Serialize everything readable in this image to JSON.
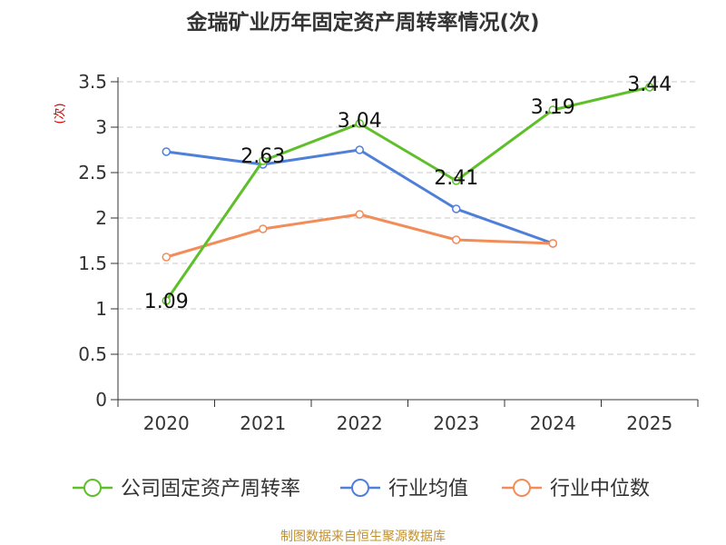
{
  "chart_data": {
    "type": "line",
    "title": "金瑞矿业历年固定资产周转率情况(次)",
    "ylabel": "(次)",
    "xlabel": "",
    "ylim": [
      0,
      3.5
    ],
    "yticks": [
      "0",
      "0.5",
      "1",
      "1.5",
      "2",
      "2.5",
      "3",
      "3.5"
    ],
    "ytick_values": [
      0,
      0.5,
      1,
      1.5,
      2,
      2.5,
      3,
      3.5
    ],
    "categories": [
      "2020",
      "2021",
      "2022",
      "2023",
      "2024",
      "2025"
    ],
    "grid": true,
    "legend_position": "bottom",
    "series": [
      {
        "name": "公司固定资产周转率",
        "color": "#5fbf2a",
        "values": [
          1.09,
          2.63,
          3.04,
          2.41,
          3.19,
          3.44
        ],
        "labels": [
          "1.09",
          "2.63",
          "3.04",
          "2.41",
          "3.19",
          "3.44"
        ]
      },
      {
        "name": "行业均值",
        "color": "#4f7fd9",
        "values": [
          2.73,
          2.59,
          2.75,
          2.1,
          1.72,
          null
        ]
      },
      {
        "name": "行业中位数",
        "color": "#f28d5a",
        "values": [
          1.57,
          1.88,
          2.04,
          1.76,
          1.72,
          null
        ]
      }
    ],
    "source": "制图数据来自恒生聚源数据库"
  }
}
